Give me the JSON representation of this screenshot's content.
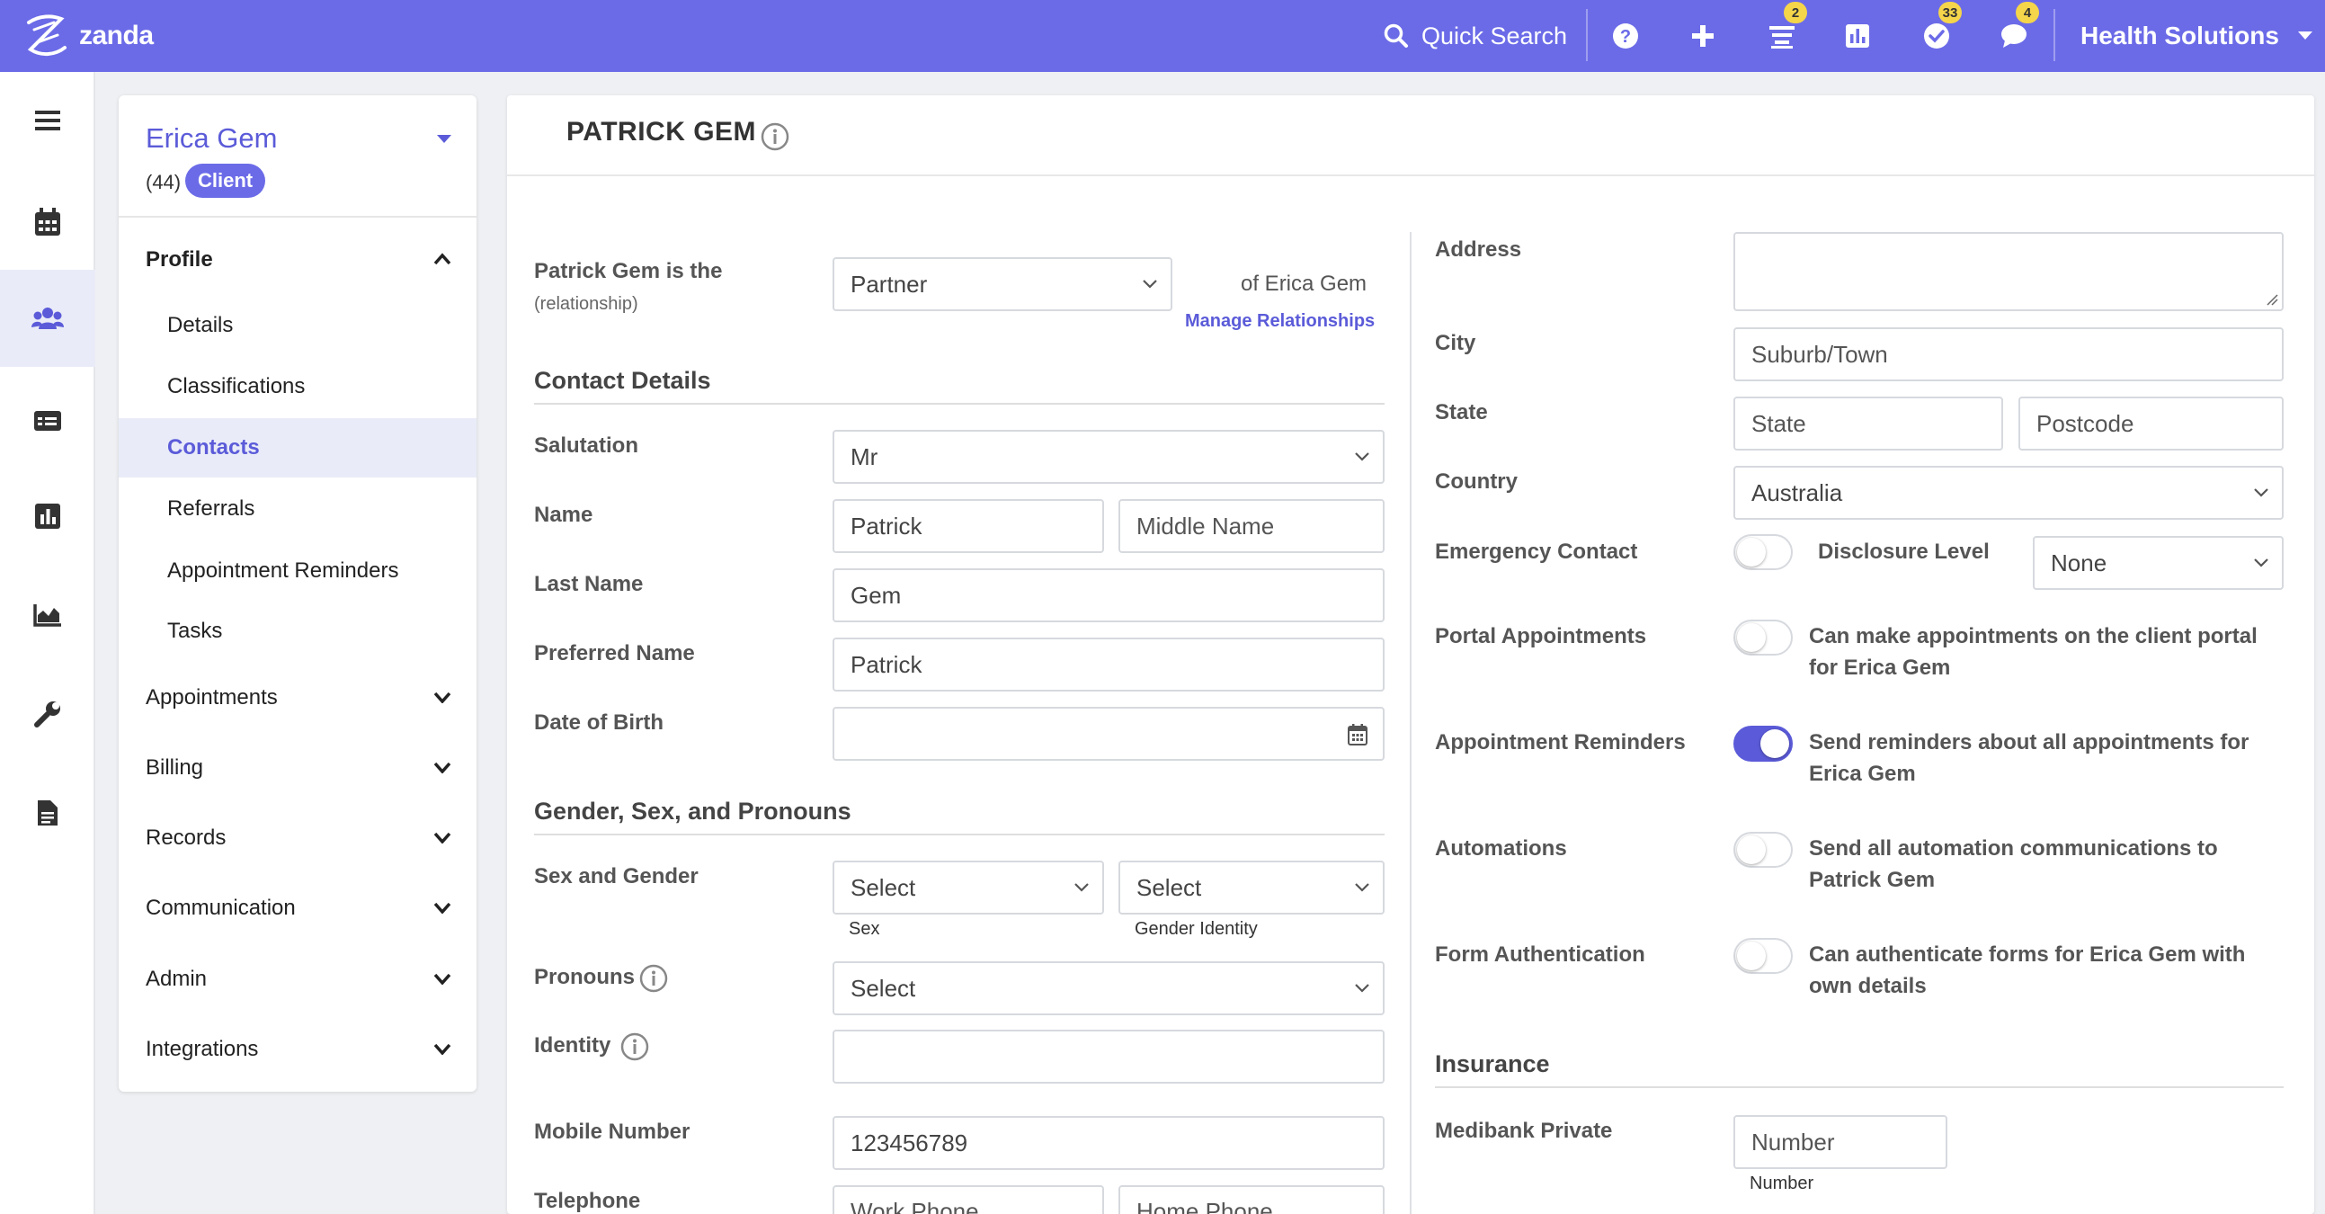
{
  "topbar": {
    "brand": "zanda",
    "search_label": "Quick Search",
    "badges": {
      "tasks": "2",
      "checks": "33",
      "messages": "4"
    },
    "org_name": "Health Solutions"
  },
  "rail": {
    "icons": [
      "menu-icon",
      "calendar-icon",
      "clients-icon",
      "billing-icon",
      "reports-icon",
      "analytics-icon",
      "settings-icon",
      "documents-icon"
    ]
  },
  "client": {
    "name": "Erica Gem",
    "count": "(44)",
    "badge": "Client"
  },
  "sidenav": {
    "profile": "Profile",
    "sub": [
      "Details",
      "Classifications",
      "Contacts",
      "Referrals",
      "Appointment Reminders",
      "Tasks"
    ],
    "sections": [
      "Appointments",
      "Billing",
      "Records",
      "Communication",
      "Admin",
      "Integrations"
    ]
  },
  "main": {
    "title": "PATRICK GEM",
    "relationship": {
      "label": "Patrick Gem is the",
      "sublabel": "(relationship)",
      "value": "Partner",
      "suffix": "of Erica Gem",
      "manage_link": "Manage Relationships"
    },
    "contact_details": {
      "heading": "Contact Details",
      "salutation_label": "Salutation",
      "salutation_value": "Mr",
      "name_label": "Name",
      "first_name": "Patrick",
      "middle_placeholder": "Middle Name",
      "last_name_label": "Last Name",
      "last_name": "Gem",
      "preferred_label": "Preferred Name",
      "preferred_value": "Patrick",
      "dob_label": "Date of Birth"
    },
    "gender": {
      "heading": "Gender, Sex, and Pronouns",
      "sex_gender_label": "Sex and Gender",
      "sex_value": "Select",
      "sex_caption": "Sex",
      "gender_value": "Select",
      "gender_caption": "Gender Identity",
      "pronouns_label": "Pronouns",
      "pronouns_value": "Select",
      "identity_label": "Identity"
    },
    "phones": {
      "mobile_label": "Mobile Number",
      "mobile_value": "123456789",
      "telephone_label": "Telephone",
      "work_placeholder": "Work Phone",
      "home_placeholder": "Home Phone"
    },
    "address": {
      "address_label": "Address",
      "city_label": "City",
      "city_placeholder": "Suburb/Town",
      "state_label": "State",
      "state_placeholder": "State",
      "postcode_placeholder": "Postcode",
      "country_label": "Country",
      "country_value": "Australia"
    },
    "toggles": {
      "emergency_label": "Emergency Contact",
      "disclosure_label": "Disclosure Level",
      "disclosure_value": "None",
      "portal_label": "Portal Appointments",
      "portal_text": "Can make appointments on the client portal for Erica Gem",
      "reminders_label": "Appointment Reminders",
      "reminders_text": "Send reminders about all appointments for Erica Gem",
      "automations_label": "Automations",
      "automations_text": "Send all automation communications to Patrick Gem",
      "formauth_label": "Form Authentication",
      "formauth_text": "Can authenticate forms for Erica Gem with own details"
    },
    "insurance": {
      "heading": "Insurance",
      "medibank_label": "Medibank Private",
      "number_placeholder": "Number",
      "number_caption": "Number"
    }
  },
  "colors": {
    "brand": "#6b6be8",
    "accent": "#5b5bd9",
    "badge": "#f5d54a"
  }
}
